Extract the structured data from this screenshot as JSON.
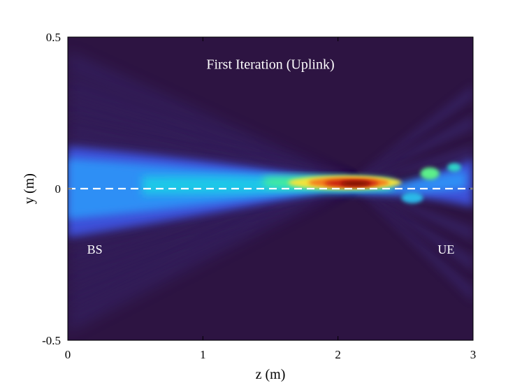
{
  "chart_data": {
    "type": "heatmap",
    "title": "First Iteration (Uplink)",
    "xlabel": "z (m)",
    "ylabel": "y (m)",
    "xlim": [
      0,
      3
    ],
    "ylim": [
      -0.5,
      0.5
    ],
    "x_ticks": [
      "0",
      "1",
      "2",
      "3"
    ],
    "y_ticks": [
      "-0.5",
      "0",
      "0.5"
    ],
    "x_tick_values": [
      0,
      1,
      2,
      3
    ],
    "y_tick_values": [
      -0.5,
      0,
      0.5
    ],
    "colormap": "turbo",
    "background_color": "#2d1442",
    "reference_line": {
      "y": 0,
      "style": "dashed",
      "color": "#ffffff"
    },
    "annotations": [
      {
        "text": "BS",
        "x": 0.2,
        "y": -0.2
      },
      {
        "text": "UE",
        "x": 2.8,
        "y": -0.2
      }
    ],
    "beam": {
      "source_z": 0,
      "focus_z": 2.1,
      "focus_y": 0.02,
      "receiver_z": 3
    },
    "grid": false,
    "legend": "none"
  }
}
